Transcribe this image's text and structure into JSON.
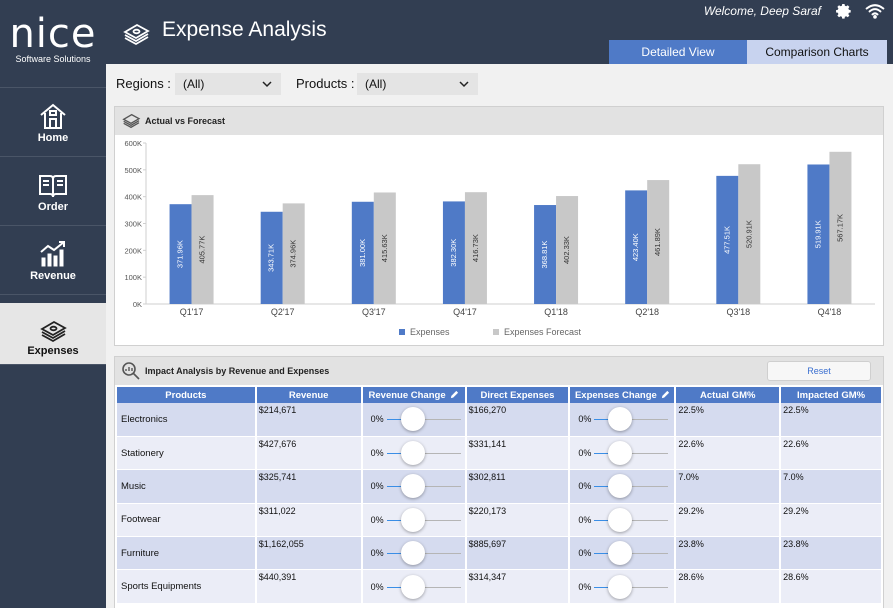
{
  "app": {
    "brand": "nice",
    "brand_sub": "Software Solutions"
  },
  "header": {
    "title": "Expense Analysis",
    "welcome": "Welcome, Deep Saraf",
    "tabs": [
      {
        "label": "Detailed View",
        "active": true
      },
      {
        "label": "Comparison Charts",
        "active": false
      }
    ]
  },
  "sidebar": {
    "items": [
      {
        "label": "Home",
        "icon": "home-icon"
      },
      {
        "label": "Order",
        "icon": "book-icon"
      },
      {
        "label": "Revenue",
        "icon": "bar-growth-icon"
      },
      {
        "label": "Expenses",
        "icon": "money-stack-icon",
        "active": true
      }
    ]
  },
  "filters": {
    "regions": {
      "label": "Regions :",
      "value": "(All)"
    },
    "products": {
      "label": "Products :",
      "value": "(All)"
    }
  },
  "chart_panel": {
    "title": "Actual vs Forecast"
  },
  "chart_data": {
    "type": "bar",
    "categories": [
      "Q1'17",
      "Q2'17",
      "Q3'17",
      "Q4'17",
      "Q1'18",
      "Q2'18",
      "Q3'18",
      "Q4'18"
    ],
    "series": [
      {
        "name": "Expenses",
        "color": "#4f7ac7",
        "values": [
          371.96,
          343.71,
          381.0,
          382.3,
          368.81,
          423.4,
          477.51,
          519.91
        ],
        "labels": [
          "371.96K",
          "343.71K",
          "381.00K",
          "382.30K",
          "368.81K",
          "423.40K",
          "477.51K",
          "519.91K"
        ]
      },
      {
        "name": "Expenses Forecast",
        "color": "#c8c8c8",
        "values": [
          405.77,
          374.96,
          415.63,
          416.73,
          402.33,
          461.89,
          520.91,
          567.17
        ],
        "labels": [
          "405.77K",
          "374.96K",
          "415.63K",
          "416.73K",
          "402.33K",
          "461.89K",
          "520.91K",
          "567.17K"
        ]
      }
    ],
    "y_ticks": [
      "0K",
      "100K",
      "200K",
      "300K",
      "400K",
      "500K",
      "600K"
    ],
    "ylim": [
      0,
      600
    ],
    "legend_position": "bottom-center",
    "grid": false
  },
  "impact_panel": {
    "title": "Impact Analysis by Revenue and Expenses",
    "reset_label": "Reset",
    "columns": [
      "Products",
      "Revenue",
      "Revenue Change",
      "Direct Expenses",
      "Expenses Change",
      "Actual GM%",
      "Impacted GM%"
    ],
    "rows": [
      {
        "product": "Electronics",
        "revenue": "$214,671",
        "revenue_change": "0%",
        "direct_expenses": "$166,270",
        "expenses_change": "0%",
        "actual_gm": "22.5%",
        "impacted_gm": "22.5%"
      },
      {
        "product": "Stationery",
        "revenue": "$427,676",
        "revenue_change": "0%",
        "direct_expenses": "$331,141",
        "expenses_change": "0%",
        "actual_gm": "22.6%",
        "impacted_gm": "22.6%"
      },
      {
        "product": "Music",
        "revenue": "$325,741",
        "revenue_change": "0%",
        "direct_expenses": "$302,811",
        "expenses_change": "0%",
        "actual_gm": "7.0%",
        "impacted_gm": "7.0%"
      },
      {
        "product": "Footwear",
        "revenue": "$311,022",
        "revenue_change": "0%",
        "direct_expenses": "$220,173",
        "expenses_change": "0%",
        "actual_gm": "29.2%",
        "impacted_gm": "29.2%"
      },
      {
        "product": "Furniture",
        "revenue": "$1,162,055",
        "revenue_change": "0%",
        "direct_expenses": "$885,697",
        "expenses_change": "0%",
        "actual_gm": "23.8%",
        "impacted_gm": "23.8%"
      },
      {
        "product": "Sports Equipments",
        "revenue": "$440,391",
        "revenue_change": "0%",
        "direct_expenses": "$314,347",
        "expenses_change": "0%",
        "actual_gm": "28.6%",
        "impacted_gm": "28.6%"
      }
    ]
  }
}
